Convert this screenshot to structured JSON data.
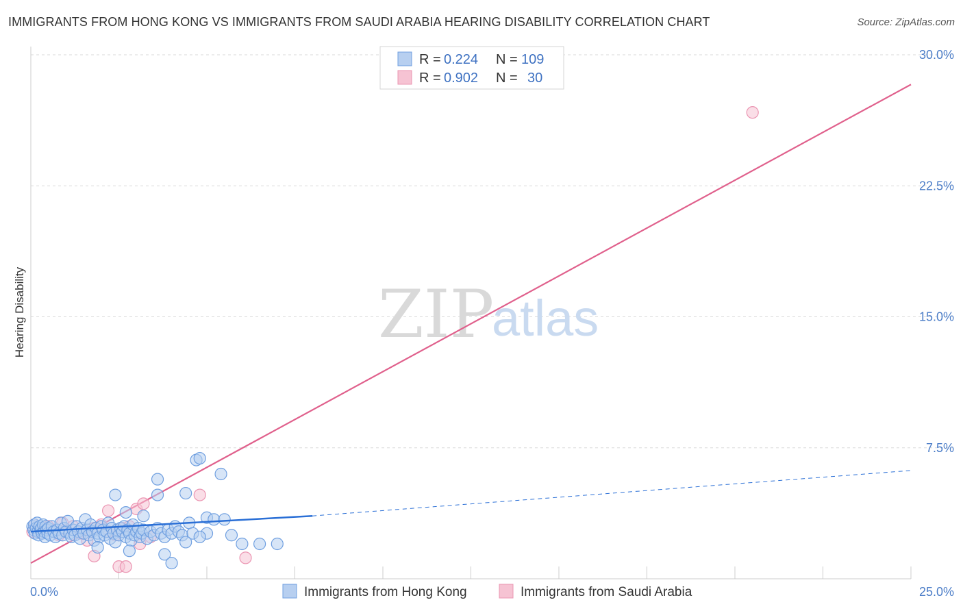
{
  "title": "IMMIGRANTS FROM HONG KONG VS IMMIGRANTS FROM SAUDI ARABIA HEARING DISABILITY CORRELATION CHART",
  "source": "Source: ZipAtlas.com",
  "watermark": {
    "zip": "ZIP",
    "atlas": "atlas"
  },
  "colors": {
    "blue_fill": "#b7cff0",
    "blue_stroke": "#6f9fe0",
    "blue_line": "#2a6fd6",
    "pink_fill": "#f6c3d3",
    "pink_stroke": "#eb95b2",
    "pink_line": "#e0608c",
    "grid": "#d9d9d9",
    "axis_tick_text": "#4a7cc7"
  },
  "legend": {
    "series": [
      {
        "r_label": "R =",
        "r_value": "0.224",
        "n_label": "N =",
        "n_value": "109"
      },
      {
        "r_label": "R =",
        "r_value": "0.902",
        "n_label": "N =",
        "n_value": "30"
      }
    ]
  },
  "chart_data": {
    "type": "scatter",
    "title": "IMMIGRANTS FROM HONG KONG VS IMMIGRANTS FROM SAUDI ARABIA HEARING DISABILITY CORRELATION CHART",
    "xlabel": "",
    "ylabel": "Hearing Disability",
    "xlim": [
      0,
      25
    ],
    "ylim": [
      0,
      30
    ],
    "x_tick_labels": [
      {
        "value": 0,
        "label": "0.0%"
      },
      {
        "value": 25,
        "label": "25.0%"
      }
    ],
    "y_tick_labels": [
      {
        "value": 7.5,
        "label": "7.5%"
      },
      {
        "value": 15,
        "label": "15.0%"
      },
      {
        "value": 22.5,
        "label": "22.5%"
      },
      {
        "value": 30,
        "label": "30.0%"
      }
    ],
    "grid": true,
    "series": [
      {
        "name": "Immigrants from Hong Kong",
        "color": "blue",
        "trend": {
          "x": [
            0,
            8
          ],
          "y": [
            2.7,
            3.6
          ],
          "dashed_extension": {
            "x": [
              8,
              25
            ],
            "y": [
              3.6,
              6.2
            ]
          }
        },
        "points": [
          [
            0.05,
            3.0
          ],
          [
            0.08,
            2.8
          ],
          [
            0.1,
            3.1
          ],
          [
            0.12,
            2.6
          ],
          [
            0.15,
            2.9
          ],
          [
            0.18,
            3.2
          ],
          [
            0.2,
            2.7
          ],
          [
            0.22,
            2.5
          ],
          [
            0.25,
            3.0
          ],
          [
            0.28,
            2.8
          ],
          [
            0.3,
            2.9
          ],
          [
            0.32,
            2.6
          ],
          [
            0.35,
            3.1
          ],
          [
            0.38,
            2.7
          ],
          [
            0.4,
            2.4
          ],
          [
            0.42,
            3.0
          ],
          [
            0.45,
            2.8
          ],
          [
            0.48,
            2.6
          ],
          [
            0.5,
            2.9
          ],
          [
            0.55,
            2.5
          ],
          [
            0.6,
            3.0
          ],
          [
            0.65,
            2.7
          ],
          [
            0.7,
            2.4
          ],
          [
            0.75,
            2.8
          ],
          [
            0.8,
            2.6
          ],
          [
            0.85,
            3.2
          ],
          [
            0.9,
            2.5
          ],
          [
            0.95,
            2.9
          ],
          [
            1.0,
            2.7
          ],
          [
            1.05,
            3.3
          ],
          [
            1.1,
            2.6
          ],
          [
            1.15,
            2.4
          ],
          [
            1.2,
            2.8
          ],
          [
            1.25,
            2.5
          ],
          [
            1.3,
            3.0
          ],
          [
            1.35,
            2.7
          ],
          [
            1.4,
            2.3
          ],
          [
            1.45,
            2.9
          ],
          [
            1.5,
            2.6
          ],
          [
            1.55,
            3.4
          ],
          [
            1.6,
            2.8
          ],
          [
            1.65,
            2.5
          ],
          [
            1.7,
            3.1
          ],
          [
            1.75,
            2.7
          ],
          [
            1.8,
            2.2
          ],
          [
            1.85,
            2.9
          ],
          [
            1.9,
            2.6
          ],
          [
            1.95,
            2.4
          ],
          [
            2.0,
            3.0
          ],
          [
            2.05,
            2.8
          ],
          [
            2.1,
            2.5
          ],
          [
            2.15,
            2.7
          ],
          [
            2.2,
            3.2
          ],
          [
            2.25,
            2.3
          ],
          [
            2.3,
            2.9
          ],
          [
            2.35,
            2.6
          ],
          [
            2.4,
            2.1
          ],
          [
            2.45,
            2.8
          ],
          [
            2.5,
            2.5
          ],
          [
            2.55,
            2.9
          ],
          [
            2.6,
            2.7
          ],
          [
            2.65,
            3.0
          ],
          [
            2.7,
            2.4
          ],
          [
            2.75,
            2.8
          ],
          [
            2.8,
            2.6
          ],
          [
            2.85,
            2.2
          ],
          [
            2.9,
            3.1
          ],
          [
            2.95,
            2.5
          ],
          [
            3.0,
            2.7
          ],
          [
            3.05,
            2.9
          ],
          [
            3.1,
            2.4
          ],
          [
            3.15,
            2.6
          ],
          [
            3.2,
            2.8
          ],
          [
            3.3,
            2.3
          ],
          [
            3.4,
            2.7
          ],
          [
            3.5,
            2.5
          ],
          [
            3.6,
            2.9
          ],
          [
            3.7,
            2.6
          ],
          [
            3.8,
            2.4
          ],
          [
            3.9,
            2.8
          ],
          [
            4.0,
            2.6
          ],
          [
            4.1,
            3.0
          ],
          [
            4.2,
            2.7
          ],
          [
            4.3,
            2.5
          ],
          [
            4.5,
            3.2
          ],
          [
            4.6,
            2.6
          ],
          [
            5.0,
            3.5
          ],
          [
            5.2,
            3.4
          ],
          [
            5.5,
            3.4
          ],
          [
            6.0,
            2.0
          ],
          [
            6.5,
            2.0
          ],
          [
            7.0,
            2.0
          ],
          [
            5.7,
            2.5
          ],
          [
            5.0,
            2.6
          ],
          [
            4.8,
            2.4
          ],
          [
            4.4,
            2.1
          ],
          [
            2.4,
            4.8
          ],
          [
            2.7,
            3.8
          ],
          [
            3.2,
            3.6
          ],
          [
            3.6,
            4.8
          ],
          [
            3.6,
            5.7
          ],
          [
            4.4,
            4.9
          ],
          [
            4.7,
            6.8
          ],
          [
            4.8,
            6.9
          ],
          [
            5.4,
            6.0
          ],
          [
            3.8,
            1.4
          ],
          [
            4.0,
            0.9
          ],
          [
            1.9,
            1.8
          ],
          [
            2.8,
            1.6
          ]
        ]
      },
      {
        "name": "Immigrants from Saudi Arabia",
        "color": "pink",
        "trend": {
          "x": [
            0,
            25
          ],
          "y": [
            0.9,
            28.3
          ]
        },
        "points": [
          [
            0.05,
            2.7
          ],
          [
            0.1,
            3.1
          ],
          [
            0.2,
            2.9
          ],
          [
            0.3,
            2.6
          ],
          [
            0.4,
            2.8
          ],
          [
            0.5,
            3.0
          ],
          [
            0.6,
            2.7
          ],
          [
            0.8,
            2.5
          ],
          [
            0.9,
            3.2
          ],
          [
            1.0,
            2.8
          ],
          [
            1.2,
            3.0
          ],
          [
            1.4,
            2.6
          ],
          [
            1.6,
            2.2
          ],
          [
            1.8,
            2.9
          ],
          [
            2.0,
            3.1
          ],
          [
            2.2,
            2.7
          ],
          [
            2.4,
            2.5
          ],
          [
            2.6,
            2.9
          ],
          [
            2.8,
            3.0
          ],
          [
            3.0,
            4.0
          ],
          [
            3.2,
            4.3
          ],
          [
            3.4,
            2.4
          ],
          [
            2.2,
            3.9
          ],
          [
            4.8,
            4.8
          ],
          [
            3.1,
            2.0
          ],
          [
            1.8,
            1.3
          ],
          [
            2.5,
            0.7
          ],
          [
            2.7,
            0.7
          ],
          [
            6.1,
            1.2
          ],
          [
            20.5,
            26.7
          ]
        ]
      }
    ]
  }
}
